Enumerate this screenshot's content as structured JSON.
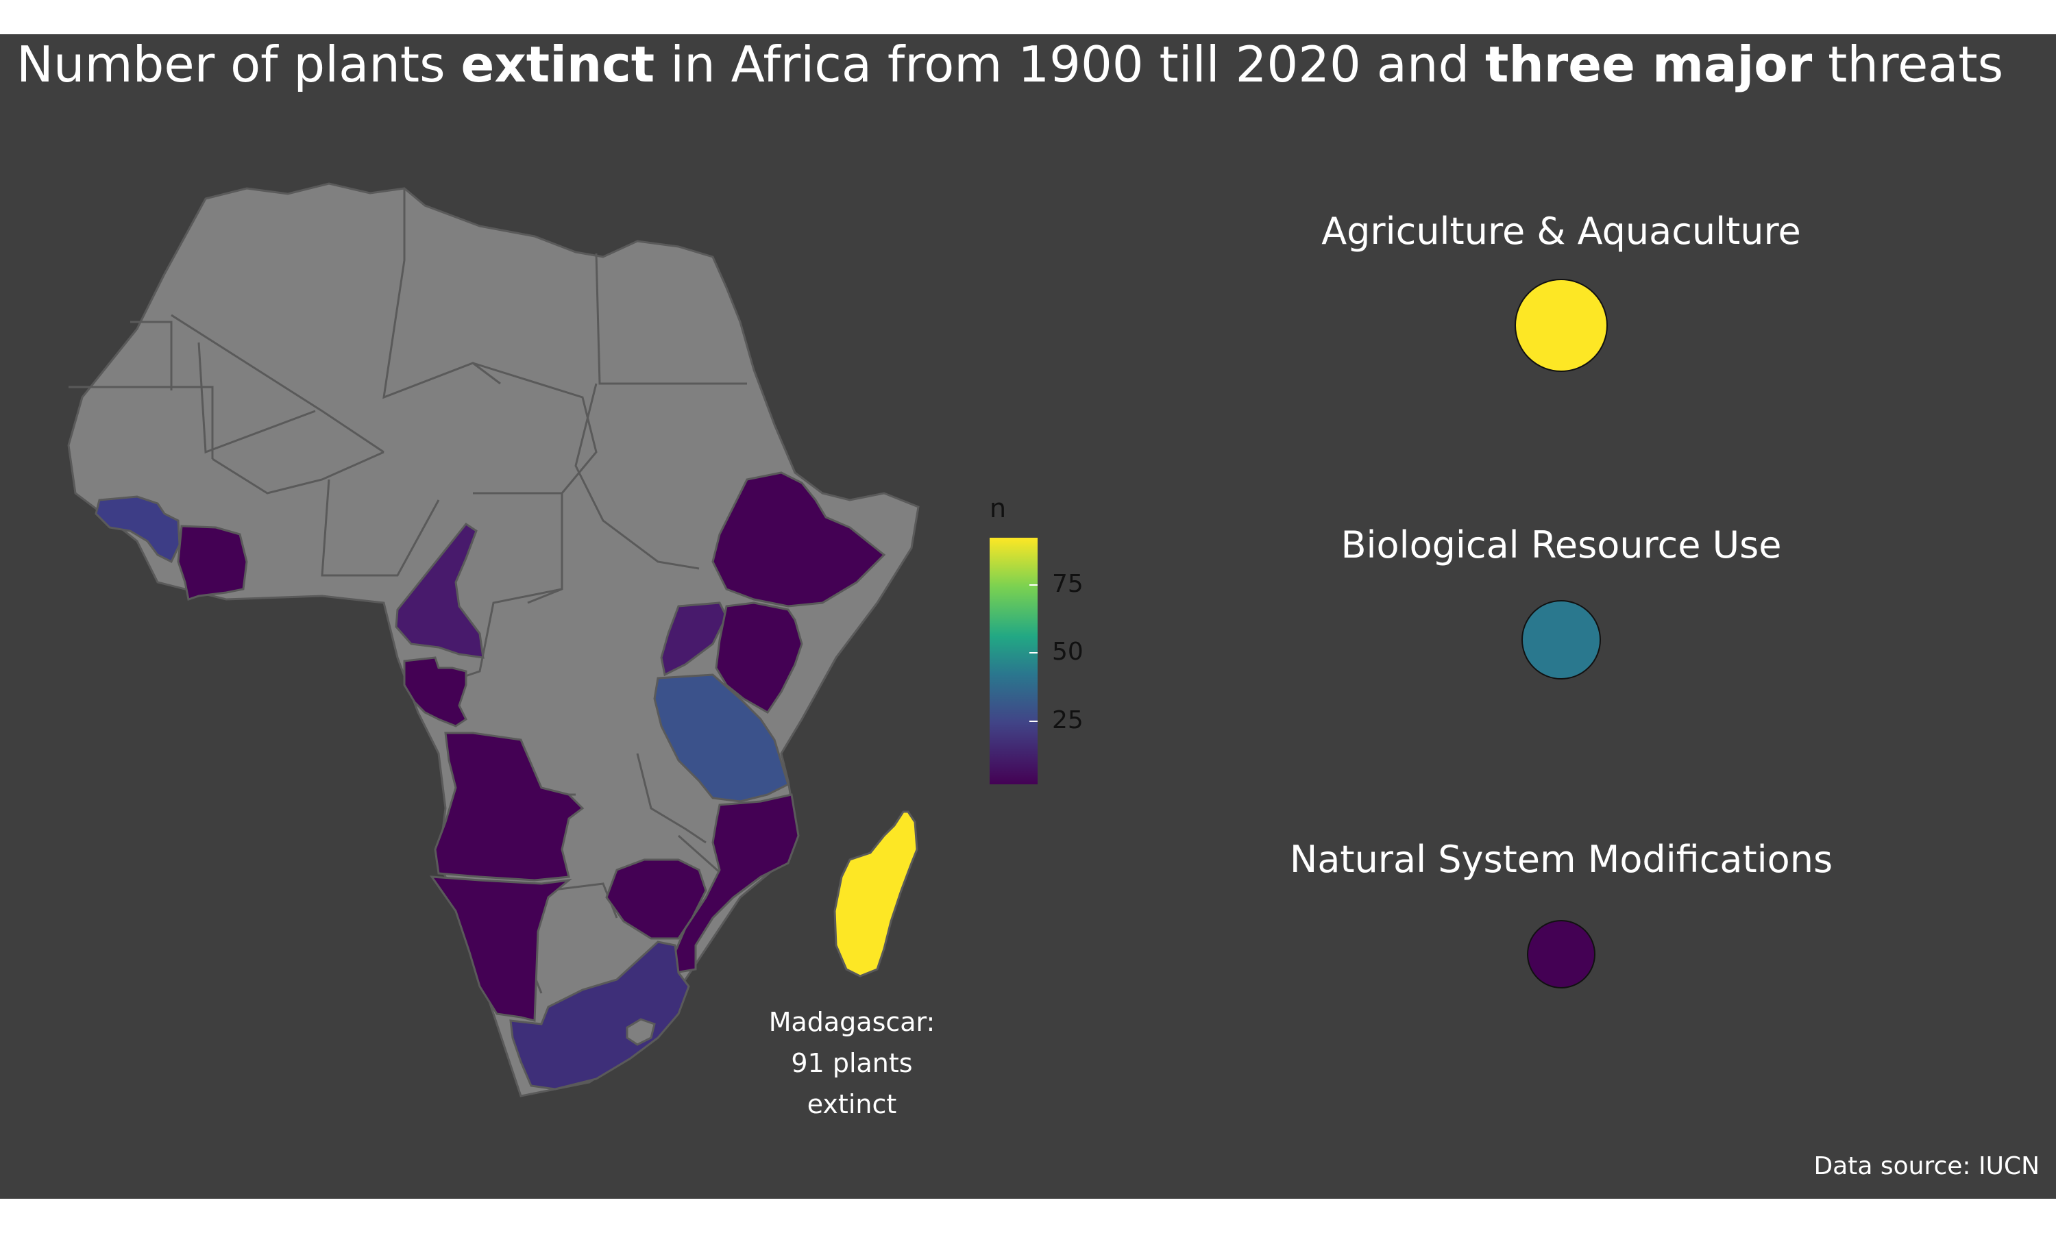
{
  "title": {
    "segments": [
      {
        "text": "Number of plants ",
        "bold": false
      },
      {
        "text": "extinct",
        "bold": true
      },
      {
        "text": " in Africa from 1900 till 2020 and ",
        "bold": false
      },
      {
        "text": "three major",
        "bold": true
      },
      {
        "text": " threats",
        "bold": false
      }
    ]
  },
  "legend": {
    "title": "n",
    "ticks": [
      {
        "label": "75",
        "value": 75
      },
      {
        "label": "50",
        "value": 50
      },
      {
        "label": "25",
        "value": 25
      }
    ],
    "range": [
      1,
      91
    ],
    "palette": "viridis"
  },
  "threats": [
    {
      "label": "Agriculture & Aquaculture",
      "color": "#fde725"
    },
    {
      "label": "Biological Resource Use",
      "color": "#2a788e"
    },
    {
      "label": "Natural System Modifications",
      "color": "#440154"
    }
  ],
  "annotation": {
    "lines": [
      "Madagascar:",
      "91 plants",
      "extinct"
    ]
  },
  "source": "Data source: IUCN",
  "colors": {
    "background": "#3f3f3f",
    "land": "#808080",
    "borders": "#5a5a5a",
    "no_data": "#808080"
  }
}
